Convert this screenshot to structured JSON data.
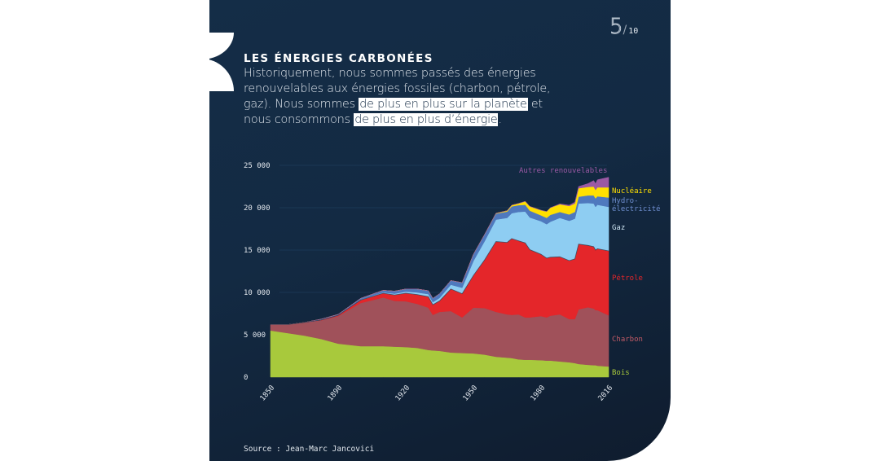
{
  "page": {
    "current": "5",
    "separator": "/",
    "total": "10"
  },
  "heading": "LES ÉNERGIES CARBONÉES",
  "description": {
    "part1": "Historiquement, nous sommes passés des énergies renouvelables aux énergies fossiles (charbon, pétrole, gaz). Nous sommes ",
    "highlight1": "de plus en plus sur la planète",
    "part2": " et nous consommons ",
    "highlight2": "de plus en plus d’énergie",
    "part3": "."
  },
  "source": "Source : Jean-Marc Jancovici",
  "colors": {
    "background": "#132a43",
    "highlight": "#ffffff"
  },
  "chart_data": {
    "type": "area",
    "stacked": true,
    "title": "",
    "xlabel": "",
    "ylabel": "",
    "ylim": [
      0,
      25000
    ],
    "grid": true,
    "x_tick_labels": [
      "1850",
      "1890",
      "1920",
      "1950",
      "1980",
      "2016"
    ],
    "y_tick_labels": [
      "0",
      "5 000",
      "10 000",
      "15 000",
      "20 000",
      "25 000"
    ],
    "y_ticks": [
      0,
      5000,
      10000,
      15000,
      20000,
      25000
    ],
    "legend_placement": "right (inline labels)",
    "x": [
      1850,
      1860,
      1870,
      1880,
      1890,
      1900,
      1910,
      1915,
      1920,
      1925,
      1930,
      1932,
      1935,
      1940,
      1945,
      1950,
      1955,
      1960,
      1965,
      1967,
      1970,
      1973,
      1975,
      1980,
      1983,
      1985,
      1990,
      1995,
      1998,
      2000,
      2005,
      2008,
      2009,
      2010,
      2016
    ],
    "series": [
      {
        "name": "Bois",
        "color": "#a8c93c",
        "values": [
          5500,
          5200,
          4900,
          4500,
          3950,
          3650,
          3650,
          3600,
          3550,
          3450,
          3200,
          3150,
          3100,
          2900,
          2850,
          2800,
          2650,
          2400,
          2300,
          2250,
          2100,
          2050,
          2050,
          2000,
          1950,
          1950,
          1850,
          1750,
          1650,
          1550,
          1450,
          1400,
          1400,
          1350,
          1250
        ]
      },
      {
        "name": "Charbon",
        "color": "#a0515a",
        "values": [
          700,
          1000,
          1550,
          2200,
          3250,
          5100,
          5750,
          5400,
          5400,
          5200,
          5000,
          4200,
          4600,
          4900,
          4200,
          5400,
          5500,
          5300,
          5100,
          5100,
          5300,
          5000,
          5000,
          5200,
          5100,
          5300,
          5550,
          5100,
          5200,
          6450,
          6800,
          6700,
          6500,
          6550,
          6050
        ]
      },
      {
        "name": "Pétrole",
        "color": "#e4262a",
        "values": [
          0,
          0,
          0,
          50,
          100,
          350,
          500,
          700,
          950,
          1100,
          1300,
          1200,
          1300,
          2600,
          2800,
          3800,
          5700,
          8300,
          8500,
          9000,
          8700,
          8800,
          8000,
          7300,
          7000,
          6900,
          6800,
          6900,
          7100,
          7700,
          7300,
          7300,
          7100,
          7250,
          7600
        ]
      },
      {
        "name": "Gaz",
        "color": "#8ecdf2",
        "values": [
          0,
          0,
          0,
          0,
          0,
          50,
          100,
          150,
          200,
          250,
          300,
          300,
          350,
          500,
          700,
          1700,
          2200,
          2600,
          2900,
          3000,
          3400,
          3700,
          3800,
          3900,
          4000,
          4200,
          4600,
          4700,
          4750,
          4800,
          5000,
          5100,
          5100,
          5200,
          5200
        ]
      },
      {
        "name": "Hydro-électricité",
        "color": "#4f79be",
        "values": [
          0,
          0,
          0,
          100,
          100,
          150,
          250,
          300,
          300,
          400,
          400,
          450,
          500,
          500,
          600,
          800,
          800,
          700,
          750,
          800,
          800,
          800,
          800,
          700,
          750,
          800,
          700,
          750,
          800,
          800,
          900,
          950,
          1000,
          1000,
          1100
        ]
      },
      {
        "name": "Nucléaire",
        "color": "#ffe000",
        "values": [
          0,
          0,
          0,
          0,
          0,
          0,
          0,
          0,
          0,
          0,
          0,
          0,
          0,
          0,
          0,
          0,
          0,
          50,
          100,
          150,
          200,
          400,
          500,
          600,
          750,
          850,
          900,
          1000,
          1000,
          1000,
          1000,
          1050,
          1000,
          1050,
          1200
        ]
      },
      {
        "name": "Autres renouvelables",
        "color": "#9b59a4",
        "values": [
          0,
          0,
          0,
          0,
          0,
          0,
          0,
          0,
          0,
          0,
          0,
          0,
          0,
          0,
          0,
          0,
          0,
          0,
          0,
          0,
          0,
          0,
          0,
          0,
          0,
          0,
          50,
          100,
          150,
          200,
          400,
          700,
          750,
          900,
          1200
        ]
      }
    ]
  }
}
